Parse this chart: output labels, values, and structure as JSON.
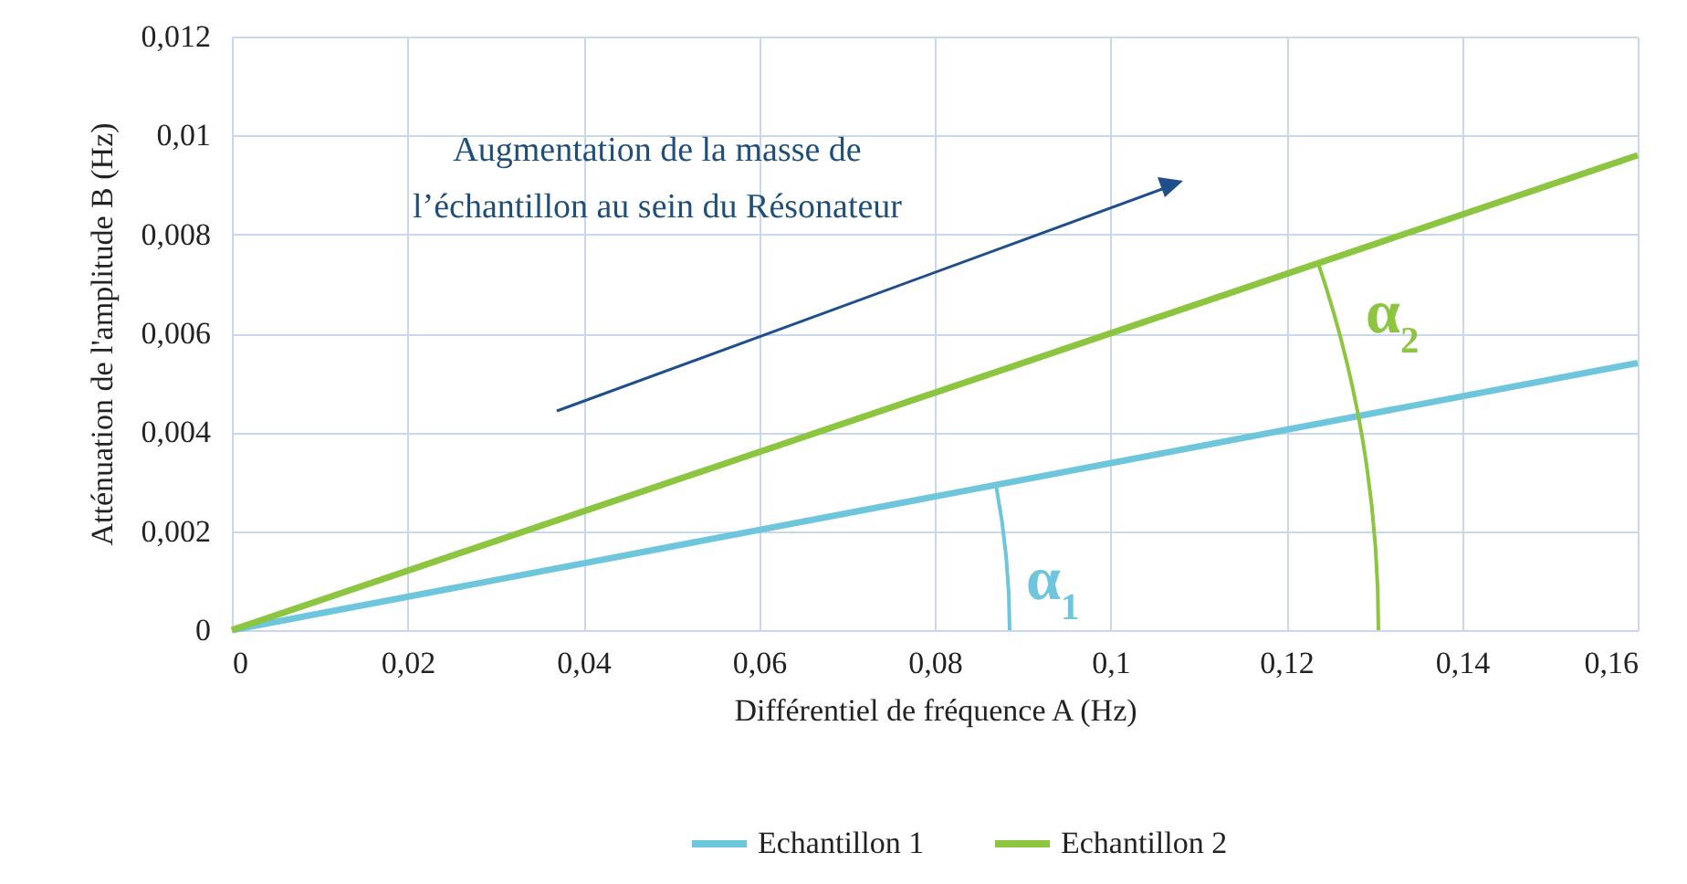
{
  "chart_data": {
    "type": "line",
    "xlabel": "Différentiel de fréquence A (Hz)",
    "ylabel": "Atténuation de l'amplitude B (Hz)",
    "x": [
      0,
      0.16
    ],
    "series": [
      {
        "name": "Echantillon 1",
        "color": "#6ec6dc",
        "values": [
          0,
          0.0054
        ]
      },
      {
        "name": "Echantillon 2",
        "color": "#8cc540",
        "values": [
          0,
          0.0096
        ]
      }
    ],
    "xlim": [
      0,
      0.16
    ],
    "xticks": [
      0,
      {
        "value": 0.02,
        "label": "0,02"
      },
      {
        "value": 0.04,
        "label": "0,04"
      },
      {
        "value": 0.06,
        "label": "0,06"
      },
      {
        "value": 0.08,
        "label": "0,08"
      },
      {
        "value": 0.1,
        "label": "0,1"
      },
      {
        "value": 0.12,
        "label": "0,12"
      },
      {
        "value": 0.14,
        "label": "0,14"
      },
      {
        "value": 0.16,
        "label": "0,16"
      }
    ],
    "ylim": [
      0,
      0.012
    ],
    "yticks": [
      0,
      {
        "value": 0.002,
        "label": "0,002"
      },
      {
        "value": 0.004,
        "label": "0,004"
      },
      {
        "value": 0.006,
        "label": "0,006"
      },
      {
        "value": 0.008,
        "label": "0,008"
      },
      {
        "value": 0.01,
        "label": "0,01"
      },
      {
        "value": 0.012,
        "label": "0,012"
      }
    ],
    "grid": true,
    "legend": "bottom",
    "marker": "none",
    "line_style": "solid",
    "annotations": [
      "Augmentation de la masse de l’échantillon au sein du Résonateur",
      "α$_{1}$",
      "α$_{2}$"
    ]
  }
}
